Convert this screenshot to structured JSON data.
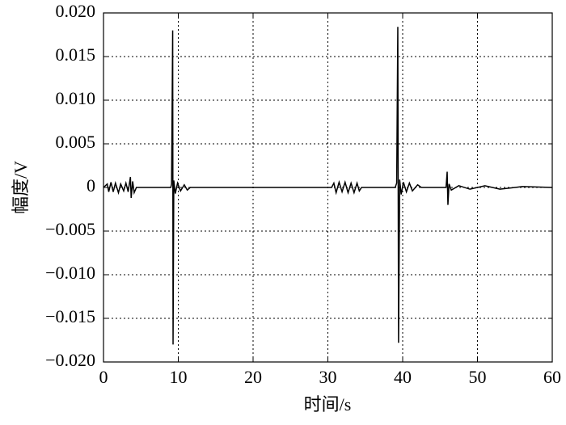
{
  "chart_data": {
    "type": "line",
    "xlabel": "时间/s",
    "ylabel": "幅度/V",
    "x": [
      0,
      0.5,
      0.7,
      1.0,
      1.3,
      1.6,
      2.0,
      2.3,
      2.7,
      3.0,
      3.3,
      3.6,
      3.7,
      3.9,
      4.1,
      4.4,
      9.0,
      9.1,
      9.25,
      9.3,
      9.4,
      9.6,
      9.9,
      10.3,
      10.8,
      11.2,
      11.6,
      30.5,
      30.8,
      31.1,
      31.5,
      31.9,
      32.3,
      32.7,
      33.1,
      33.5,
      33.9,
      34.2,
      34.5,
      39.0,
      39.2,
      39.35,
      39.45,
      39.6,
      39.8,
      40.1,
      40.5,
      40.9,
      41.3,
      42.0,
      42.5,
      45.8,
      45.95,
      46.05,
      46.2,
      46.5,
      47.5,
      49,
      51,
      53,
      56,
      60
    ],
    "series": [
      {
        "color": "#000000",
        "values": [
          0,
          0.0004,
          -0.0005,
          0.0006,
          -0.0005,
          0.0005,
          -0.0006,
          0.0004,
          -0.0004,
          0.0005,
          -0.0005,
          0.0012,
          -0.0012,
          0.0007,
          -0.0006,
          0,
          0,
          0.0004,
          0.018,
          -0.018,
          0.0008,
          -0.0007,
          0.0005,
          -0.0004,
          0.0003,
          -0.0003,
          0,
          0,
          0.0005,
          -0.0006,
          0.0006,
          -0.0005,
          0.0006,
          -0.0006,
          0.0005,
          -0.0006,
          0.0005,
          -0.0004,
          0,
          0,
          0.0005,
          0.0184,
          -0.0178,
          0.0009,
          -0.0008,
          0.0006,
          -0.0005,
          0.0005,
          -0.0004,
          0.0003,
          0,
          0,
          0.0018,
          -0.002,
          0.0004,
          -0.0003,
          0.0002,
          -0.0002,
          0.0002,
          -0.0002,
          0.0001,
          0
        ]
      }
    ],
    "xlim": [
      0,
      60
    ],
    "xticks": [
      0,
      10,
      20,
      30,
      40,
      50,
      60
    ],
    "ylim": [
      -0.02,
      0.02
    ],
    "yticks": [
      {
        "value": -0.02,
        "label": "−0.020"
      },
      {
        "value": -0.015,
        "label": "−0.015"
      },
      {
        "value": -0.01,
        "label": "−0.010"
      },
      {
        "value": -0.005,
        "label": "−0.005"
      },
      0,
      0.005,
      {
        "value": 0.01,
        "label": "0.010"
      },
      0.015,
      {
        "value": 0.02,
        "label": "0.020"
      }
    ],
    "grid": true
  }
}
